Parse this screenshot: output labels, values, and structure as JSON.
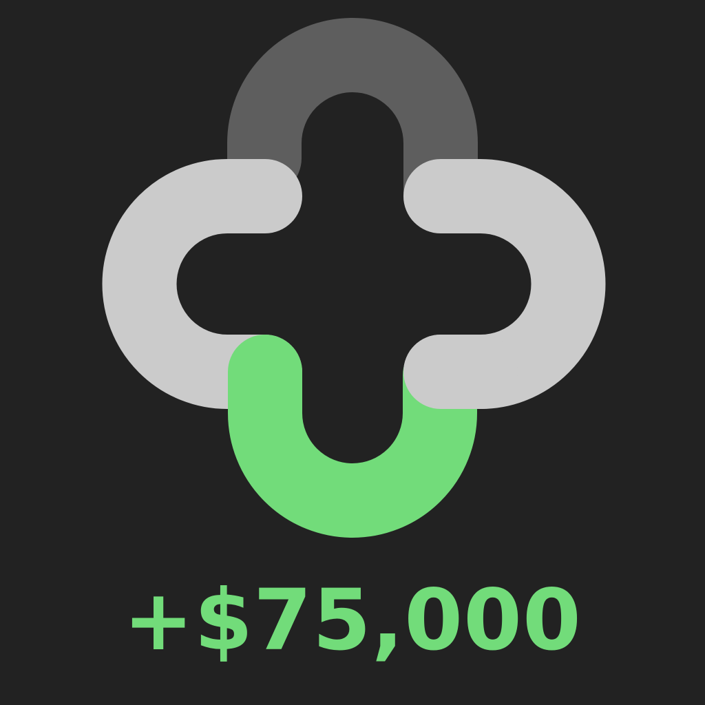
{
  "amount_text": "+$75,000",
  "colors": {
    "background": "#222222",
    "top_arch": "#5e5e5e",
    "side_arches": "#cbcbcb",
    "bottom_arch": "#72dc7a",
    "amount": "#72dc7a"
  },
  "icons": {
    "logo": "interlocking-arches-plus-icon"
  }
}
